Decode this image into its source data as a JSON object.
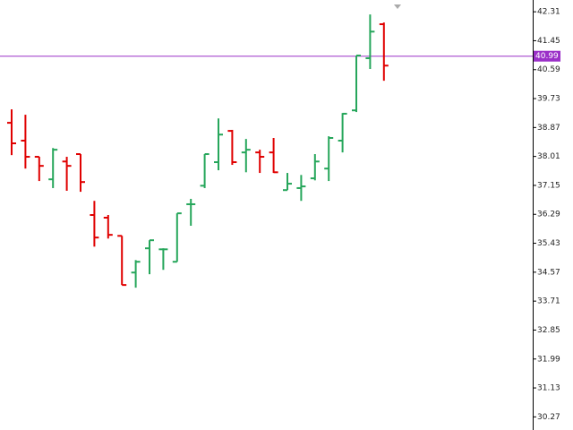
{
  "chart_data": {
    "type": "ohlc",
    "categories": [
      null,
      null,
      null,
      null,
      null,
      null,
      null,
      null,
      null,
      null,
      null,
      null,
      null,
      null,
      null,
      null,
      null,
      null,
      null,
      null,
      null,
      null,
      null,
      null,
      null,
      null,
      null,
      null
    ],
    "open": [
      39.01,
      38.48,
      38.0,
      37.33,
      37.86,
      38.08,
      36.27,
      36.19,
      35.65,
      34.56,
      35.28,
      35.25,
      34.88,
      36.59,
      37.14,
      37.84,
      38.77,
      38.13,
      38.13,
      38.13,
      37.01,
      37.07,
      37.36,
      37.65,
      38.48,
      39.38,
      40.93,
      41.94
    ],
    "high": [
      39.41,
      39.25,
      38.0,
      38.26,
      38.0,
      38.08,
      36.69,
      36.27,
      35.65,
      34.93,
      35.52,
      35.28,
      36.32,
      36.75,
      38.08,
      39.14,
      38.8,
      38.53,
      38.21,
      38.56,
      37.52,
      37.46,
      38.08,
      38.61,
      39.3,
      41.01,
      42.23,
      41.99
    ],
    "low": [
      38.05,
      37.65,
      37.28,
      37.07,
      36.99,
      36.96,
      35.33,
      35.57,
      34.19,
      34.11,
      34.51,
      34.64,
      34.88,
      35.95,
      37.07,
      37.6,
      37.76,
      37.54,
      37.52,
      37.52,
      37.01,
      36.69,
      37.3,
      37.28,
      38.13,
      39.33,
      40.61,
      40.26
    ],
    "close": [
      38.4,
      38.0,
      37.73,
      38.21,
      37.73,
      37.25,
      35.6,
      35.68,
      34.19,
      34.88,
      35.52,
      35.25,
      36.32,
      36.59,
      38.08,
      38.66,
      37.84,
      38.21,
      38.0,
      37.54,
      37.2,
      37.12,
      37.86,
      38.56,
      39.28,
      41.01,
      41.72,
      40.71
    ],
    "up_color": "#26a65b",
    "down_color": "#e00000",
    "price_line": 40.99,
    "price_line_color": "#9b30c8",
    "ylim": [
      29.88,
      42.66
    ],
    "yticks": [
      42.31,
      41.45,
      40.59,
      39.73,
      38.87,
      38.01,
      37.15,
      36.29,
      35.43,
      34.57,
      33.71,
      32.85,
      31.99,
      31.13,
      30.27
    ]
  }
}
